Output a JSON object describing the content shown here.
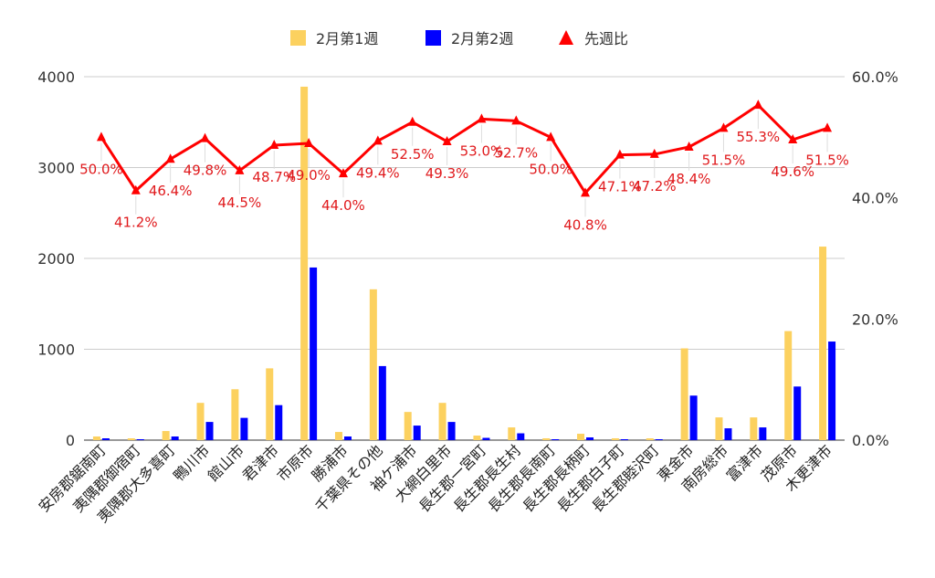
{
  "chart_data": {
    "type": "bar",
    "categories": [
      "安房郡鋸南町",
      "夷隅郡御宿町",
      "夷隅郡大多喜町",
      "鴨川市",
      "館山市",
      "君津市",
      "市原市",
      "勝浦市",
      "千葉県その他",
      "袖ケ浦市",
      "大網白里市",
      "長生郡一宮町",
      "長生郡長生村",
      "長生郡長南町",
      "長生郡長柄町",
      "長生郡白子町",
      "長生郡睦沢町",
      "東金市",
      "南房総市",
      "富津市",
      "茂原市",
      "木更津市"
    ],
    "series": [
      {
        "name": "2月第1週",
        "axis": "left",
        "type": "bar",
        "color": "#fcd15f",
        "values": [
          40,
          20,
          100,
          410,
          560,
          790,
          3890,
          90,
          1660,
          310,
          410,
          50,
          140,
          20,
          70,
          20,
          20,
          1010,
          250,
          250,
          1200,
          2130
        ]
      },
      {
        "name": "2月第2週",
        "axis": "left",
        "type": "bar",
        "color": "#0000ff",
        "values": [
          20,
          10,
          40,
          200,
          245,
          385,
          1900,
          40,
          815,
          160,
          200,
          25,
          75,
          10,
          30,
          10,
          10,
          490,
          130,
          140,
          590,
          1085
        ]
      },
      {
        "name": "先週比",
        "axis": "right",
        "type": "line",
        "color": "#ff0000",
        "values": [
          50.0,
          41.2,
          46.4,
          49.8,
          44.5,
          48.7,
          49.0,
          44.0,
          49.4,
          52.5,
          49.3,
          53.0,
          52.7,
          50.0,
          40.8,
          47.1,
          47.2,
          48.4,
          51.5,
          55.3,
          49.6,
          51.5
        ],
        "labels": [
          "50.0%",
          "41.2%",
          "46.4%",
          "49.8%",
          "44.5%",
          "48.7%",
          "49.0%",
          "44.0%",
          "49.4%",
          "52.5%",
          "49.3%",
          "53.0%",
          "52.7%",
          "50.0%",
          "40.8%",
          "47.1%",
          "47.2%",
          "48.4%",
          "51.5%",
          "55.3%",
          "49.6%",
          "51.5%"
        ]
      }
    ],
    "y_left": {
      "min": 0,
      "max": 4000,
      "ticks": [
        "0",
        "1000",
        "2000",
        "3000",
        "4000"
      ]
    },
    "y_right": {
      "min": 0,
      "max": 60,
      "ticks": [
        "0.0%",
        "20.0%",
        "40.0%",
        "60.0%"
      ]
    },
    "legend": {
      "position": "top",
      "items": [
        "2月第1週",
        "2月第2週",
        "先週比"
      ]
    },
    "grid": true
  }
}
